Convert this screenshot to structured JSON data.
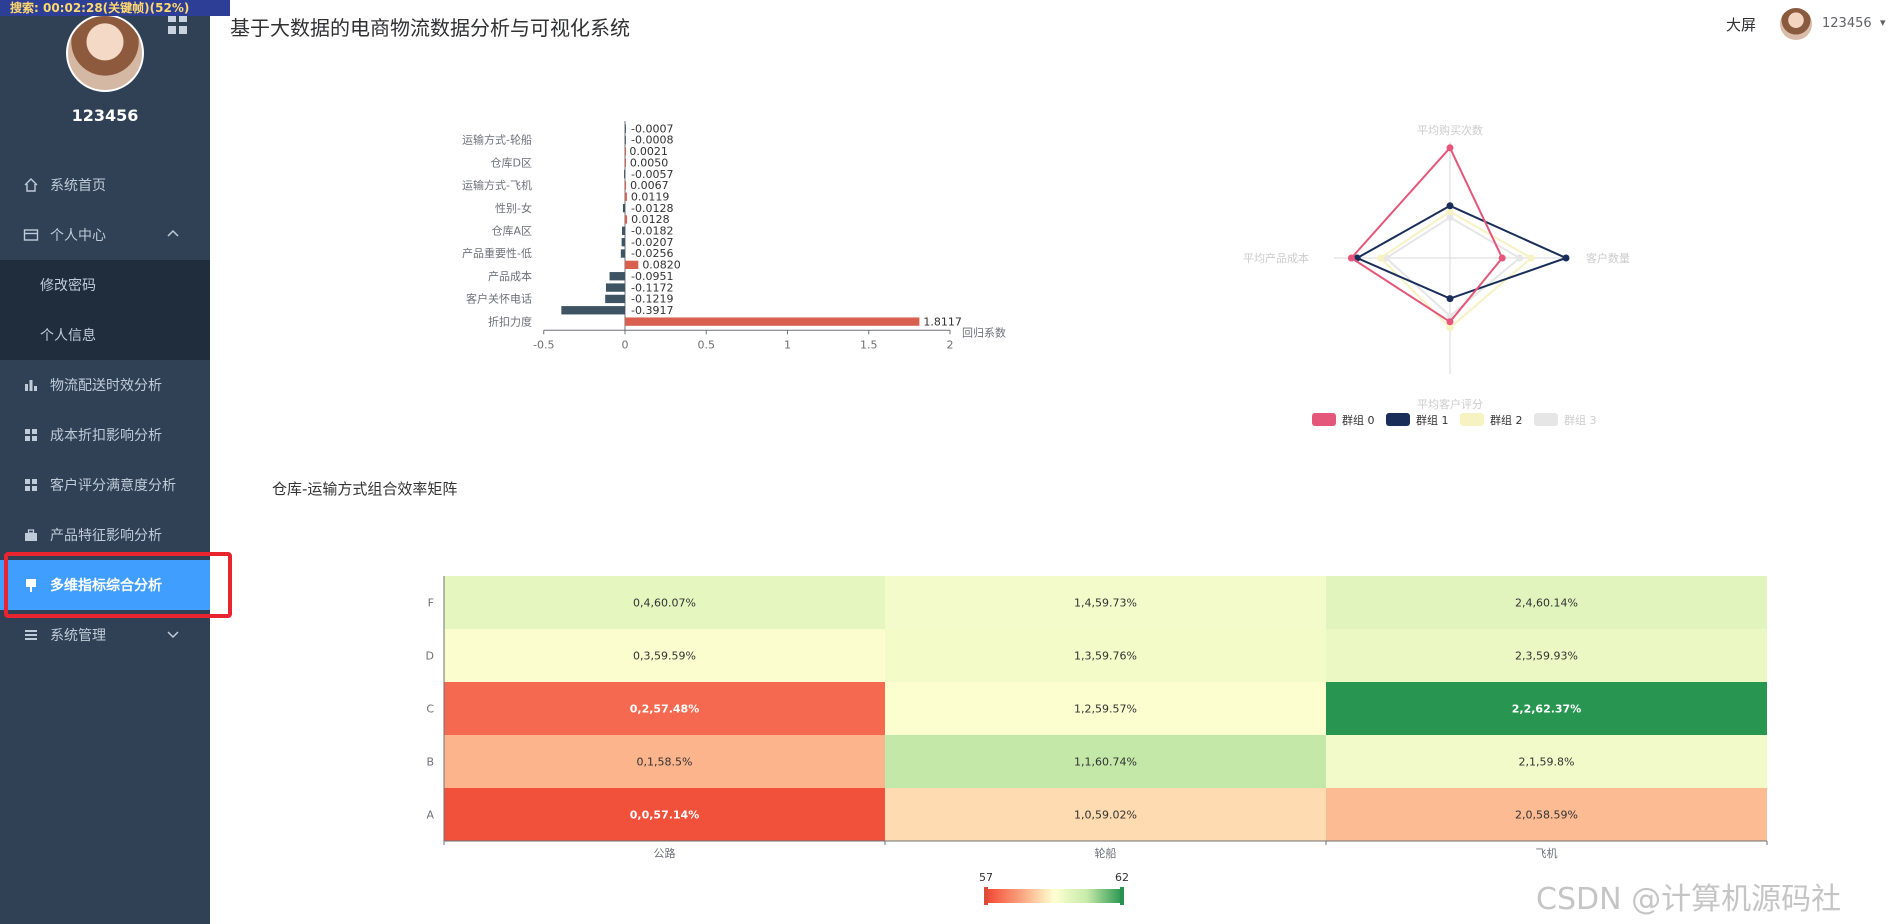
{
  "overlay": {
    "recording_text": "搜索: 00:02:28(关键帧)(52%)"
  },
  "sidebar": {
    "username": "123456",
    "items": [
      {
        "label": "系统首页",
        "icon": "home-icon"
      },
      {
        "label": "个人中心",
        "icon": "card-icon",
        "expanded": true,
        "children": [
          {
            "label": "修改密码"
          },
          {
            "label": "个人信息"
          }
        ]
      },
      {
        "label": "物流配送时效分析",
        "icon": "bar-chart-icon"
      },
      {
        "label": "成本折扣影响分析",
        "icon": "grid-icon"
      },
      {
        "label": "客户评分满意度分析",
        "icon": "grid-icon"
      },
      {
        "label": "产品特征影响分析",
        "icon": "briefcase-icon"
      },
      {
        "label": "多维指标综合分析",
        "icon": "pin-icon",
        "active": true
      },
      {
        "label": "系统管理",
        "icon": "list-icon",
        "collapsed": true
      }
    ]
  },
  "header": {
    "title": "基于大数据的电商物流数据分析与可视化系统",
    "big_screen": "大屏",
    "user": "123456"
  },
  "matrix": {
    "title": "仓库-运输方式组合效率矩阵"
  },
  "watermark": "CSDN @计算机源码社",
  "colors": {
    "sidebar": "#304156",
    "active": "#409eff",
    "positive_bar": "#d9604f",
    "negative_bar": "#3f5462"
  },
  "chart_data": [
    {
      "type": "bar",
      "orientation": "horizontal",
      "xlabel": "回归系数",
      "xlim": [
        -0.5,
        2
      ],
      "xticks": [
        "-0.5",
        "0",
        "0.5",
        "1",
        "1.5",
        "2"
      ],
      "category_labels_shown": [
        "运输方式-轮船",
        "仓库D区",
        "运输方式-飞机",
        "性别-女",
        "仓库A区",
        "产品重要性-低",
        "产品成本",
        "客户关怀电话",
        "折扣力度"
      ],
      "values": [
        -0.0007,
        -0.0008,
        0.0021,
        0.005,
        -0.0057,
        0.0067,
        0.0119,
        -0.0128,
        0.0128,
        -0.0182,
        -0.0207,
        -0.0256,
        0.082,
        -0.0951,
        -0.1172,
        -0.1219,
        -0.3917,
        1.8117
      ],
      "value_labels": [
        "-0.0007",
        "-0.0008",
        "0.0021",
        "0.0050",
        "-0.0057",
        "0.0067",
        "0.0119",
        "-0.0128",
        "0.0128",
        "-0.0182",
        "-0.0207",
        "-0.0256",
        "0.0820",
        "-0.0951",
        "-0.1172",
        "-0.1219",
        "-0.3917",
        "1.8117"
      ]
    },
    {
      "type": "radar",
      "indicators": [
        "平均购买次数",
        "客户数量",
        "平均客户评分",
        "平均产品成本"
      ],
      "series": [
        {
          "name": "群组 0",
          "color": "#e4577a",
          "values": [
            0.95,
            0.45,
            0.55,
            0.85
          ]
        },
        {
          "name": "群组 1",
          "color": "#1a2e5a",
          "values": [
            0.45,
            1.0,
            0.35,
            0.8
          ]
        },
        {
          "name": "群组 2",
          "color": "#f7f2c2",
          "values": [
            0.4,
            0.7,
            0.6,
            0.6
          ]
        },
        {
          "name": "群组 3",
          "color": "#e6e6e6",
          "values": [
            0.35,
            0.6,
            0.5,
            0.55
          ]
        }
      ]
    },
    {
      "type": "heatmap",
      "x": [
        "公路",
        "轮船",
        "飞机"
      ],
      "y": [
        "A",
        "B",
        "C",
        "D",
        "F"
      ],
      "visual_map": {
        "min": 57,
        "max": 62,
        "min_label": "57",
        "max_label": "62"
      },
      "cells": [
        {
          "x": 0,
          "y": 4,
          "value": 60.07,
          "label": "0,4,60.07%"
        },
        {
          "x": 1,
          "y": 4,
          "value": 59.73,
          "label": "1,4,59.73%"
        },
        {
          "x": 2,
          "y": 4,
          "value": 60.14,
          "label": "2,4,60.14%"
        },
        {
          "x": 0,
          "y": 3,
          "value": 59.59,
          "label": "0,3,59.59%"
        },
        {
          "x": 1,
          "y": 3,
          "value": 59.76,
          "label": "1,3,59.76%"
        },
        {
          "x": 2,
          "y": 3,
          "value": 59.93,
          "label": "2,3,59.93%"
        },
        {
          "x": 0,
          "y": 2,
          "value": 57.48,
          "label": "0,2,57.48%"
        },
        {
          "x": 1,
          "y": 2,
          "value": 59.57,
          "label": "1,2,59.57%"
        },
        {
          "x": 2,
          "y": 2,
          "value": 62.37,
          "label": "2,2,62.37%"
        },
        {
          "x": 0,
          "y": 1,
          "value": 58.5,
          "label": "0,1,58.5%"
        },
        {
          "x": 1,
          "y": 1,
          "value": 60.74,
          "label": "1,1,60.74%"
        },
        {
          "x": 2,
          "y": 1,
          "value": 59.8,
          "label": "2,1,59.8%"
        },
        {
          "x": 0,
          "y": 0,
          "value": 57.14,
          "label": "0,0,57.14%"
        },
        {
          "x": 1,
          "y": 0,
          "value": 59.02,
          "label": "1,0,59.02%"
        },
        {
          "x": 2,
          "y": 0,
          "value": 58.59,
          "label": "2,0,58.59%"
        }
      ]
    }
  ]
}
